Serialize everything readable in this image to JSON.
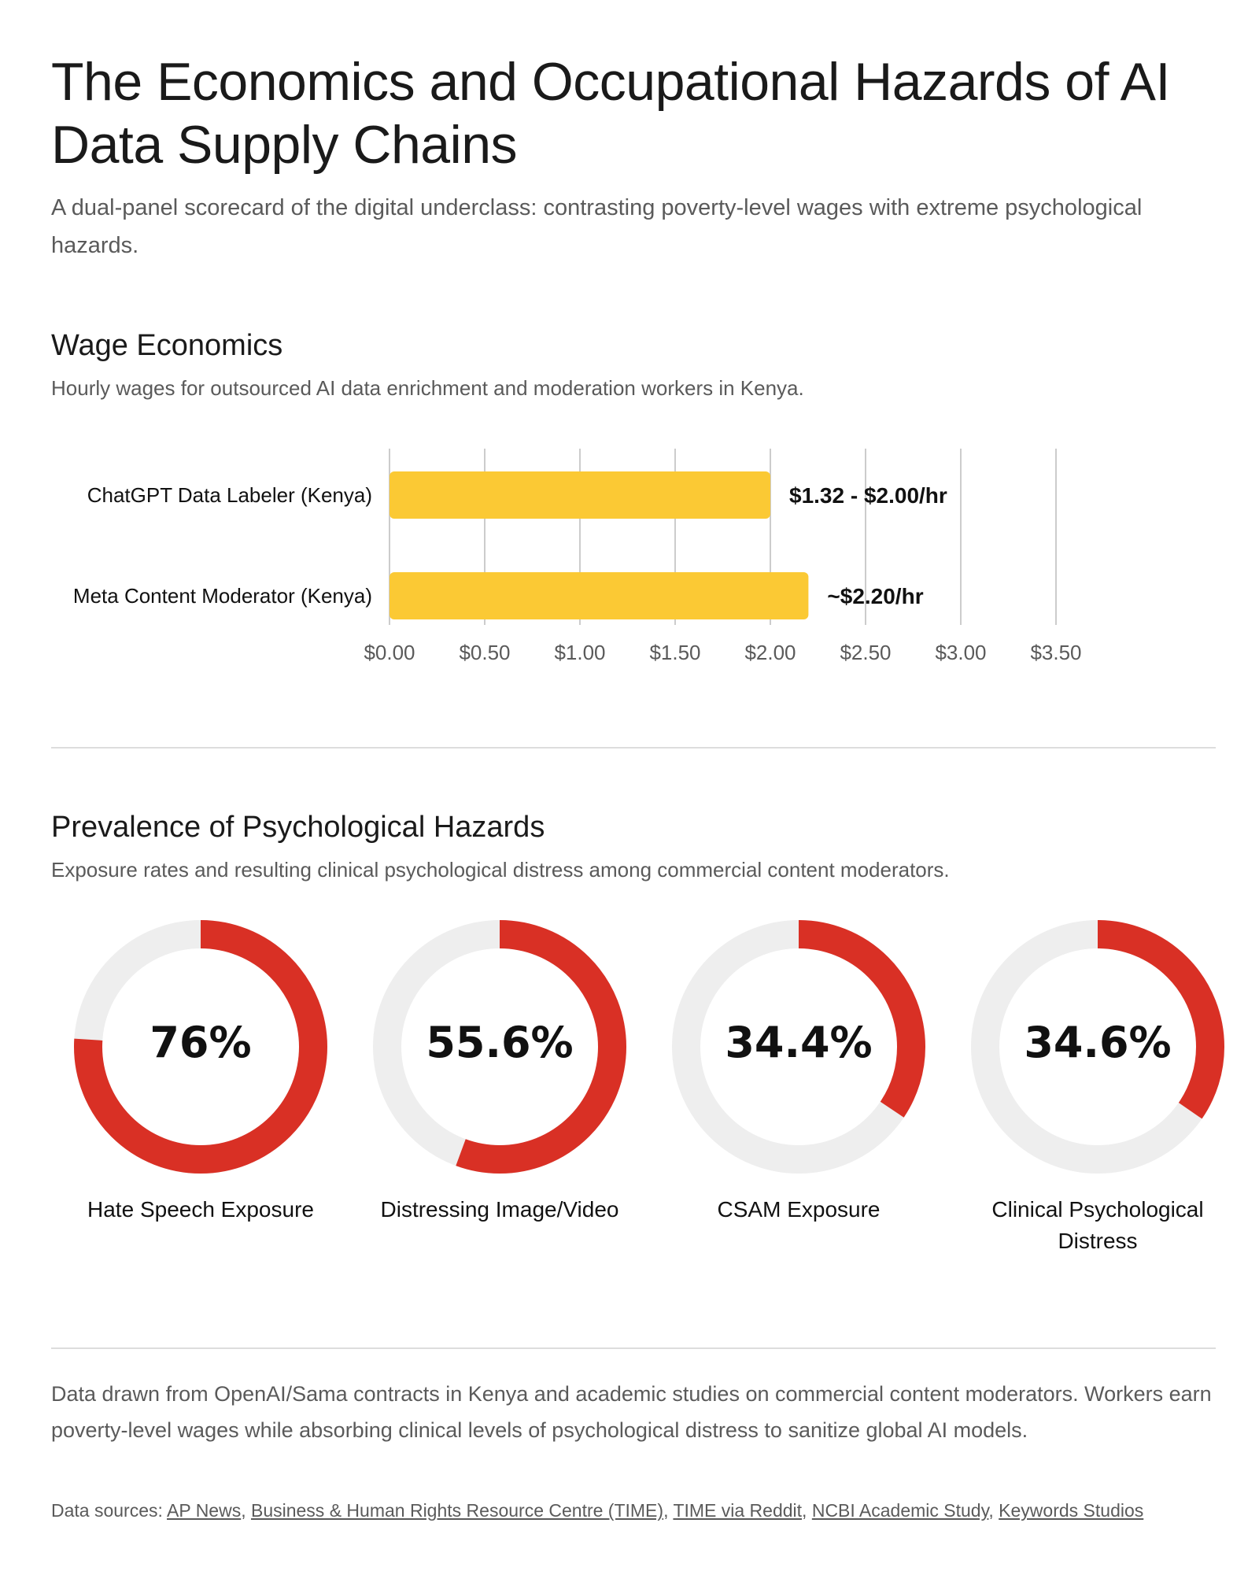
{
  "header": {
    "title": "The Economics and Occupational Hazards of AI Data Supply Chains",
    "subtitle": "A dual-panel scorecard of the digital underclass: contrasting poverty-level wages with extreme psychological hazards."
  },
  "wage_section": {
    "title": "Wage Economics",
    "subtitle": "Hourly wages for outsourced AI data enrichment and moderation workers in Kenya."
  },
  "hazard_section": {
    "title": "Prevalence of Psychological Hazards",
    "subtitle": "Exposure rates and resulting clinical psychological distress among commercial content moderators."
  },
  "chart_data": [
    {
      "type": "bar",
      "orientation": "horizontal",
      "categories": [
        "ChatGPT Data Labeler (Kenya)",
        "Meta Content Moderator (Kenya)"
      ],
      "values": [
        2.0,
        2.2
      ],
      "data_labels": [
        "$1.32 - $2.00/hr",
        "~$2.20/hr"
      ],
      "xlim": [
        0,
        3.5
      ],
      "x_ticks": [
        "$0.00",
        "$0.50",
        "$1.00",
        "$1.50",
        "$2.00",
        "$2.50",
        "$3.00",
        "$3.50"
      ],
      "x_tick_values": [
        0,
        0.5,
        1,
        1.5,
        2,
        2.5,
        3,
        3.5
      ],
      "grid": "vertical",
      "colors": {
        "bar": "#FBC934",
        "grid": "#cccccc"
      }
    },
    {
      "type": "pie",
      "style": "donut",
      "items": [
        {
          "label": "Hate Speech Exposure",
          "value": 76,
          "display": "76%"
        },
        {
          "label": "Distressing Image/Video",
          "value": 55.6,
          "display": "55.6%"
        },
        {
          "label": "CSAM Exposure",
          "value": 34.4,
          "display": "34.4%"
        },
        {
          "label": "Clinical Psychological Distress",
          "value": 34.6,
          "display": "34.6%"
        }
      ],
      "colors": {
        "filled": "#D93025",
        "track": "#EEEEEE"
      }
    }
  ],
  "footer": {
    "text": "Data drawn from OpenAI/Sama contracts in Kenya and academic studies on commercial content moderators. Workers earn poverty-level wages while absorbing clinical levels of psychological distress to sanitize global AI models.",
    "sources_label": "Data sources:",
    "sources": [
      "AP News",
      "Business & Human Rights Resource Centre (TIME)",
      "TIME via Reddit",
      "NCBI Academic Study",
      "Keywords Studios"
    ]
  }
}
